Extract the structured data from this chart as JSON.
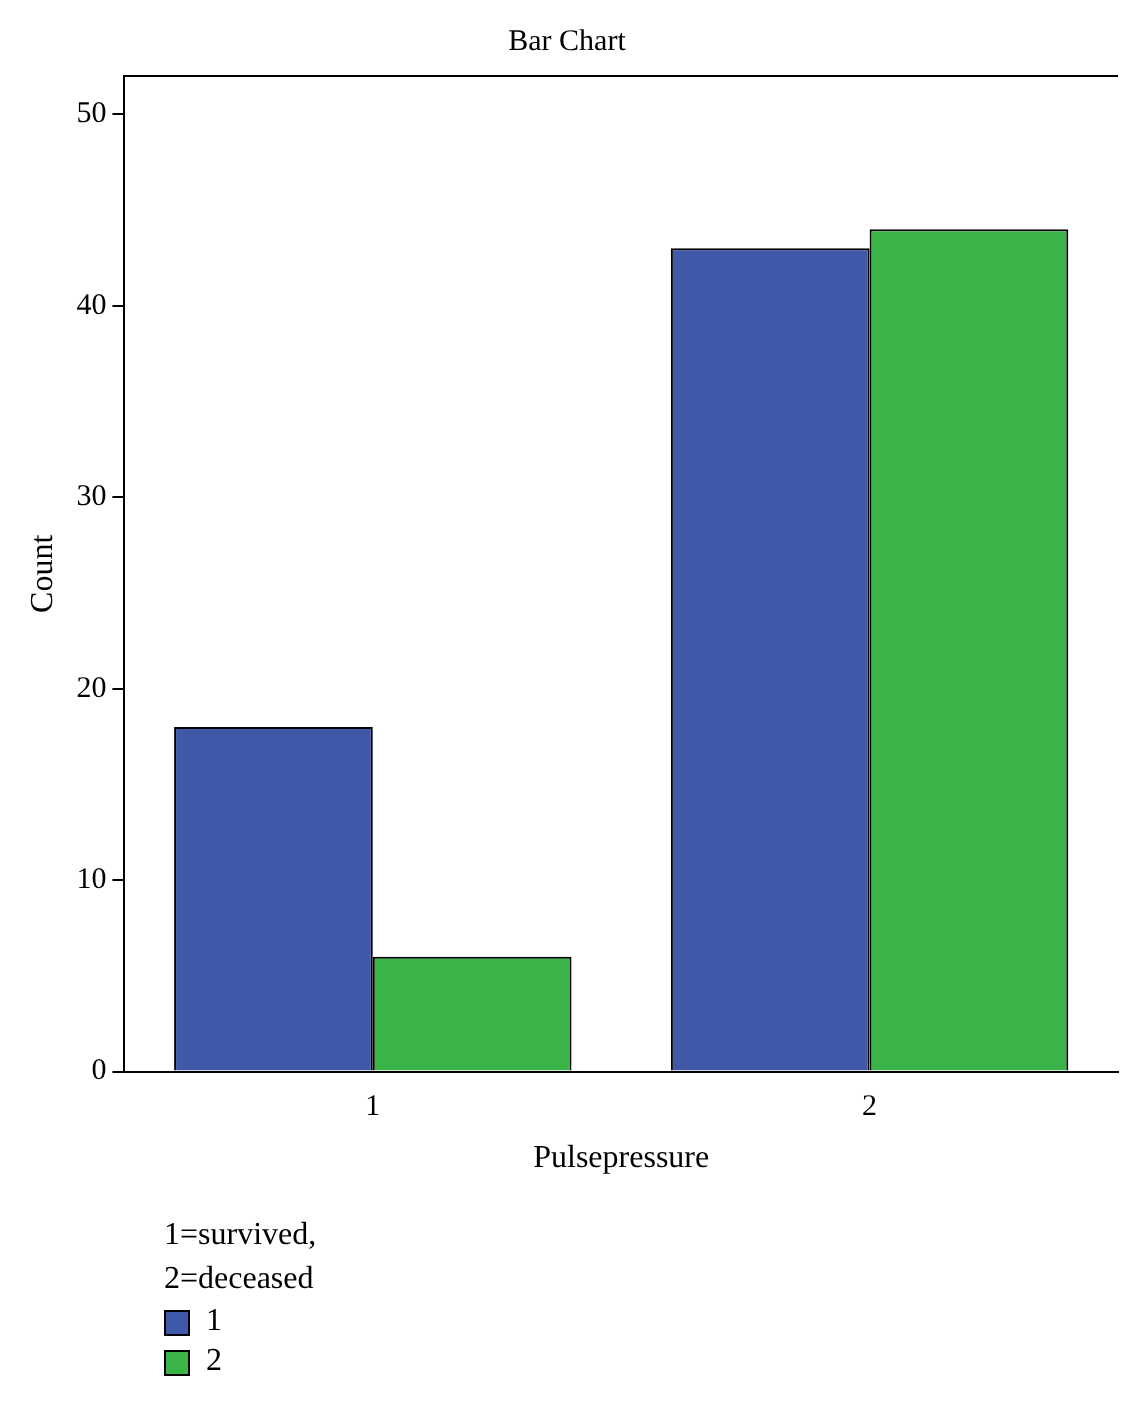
{
  "chart_data": {
    "type": "bar",
    "title": "Bar Chart",
    "xlabel": "Pulsepressure",
    "ylabel": "Count",
    "legend_title": "1=survived, 2=deceased",
    "categories": [
      "1",
      "2"
    ],
    "series": [
      {
        "name": "1",
        "color": "#3f58a7",
        "values": [
          18,
          43
        ]
      },
      {
        "name": "2",
        "color": "#3bb54a",
        "values": [
          6,
          44
        ]
      }
    ],
    "ylim": [
      0,
      52
    ],
    "yticks": [
      0,
      10,
      20,
      30,
      40,
      50
    ],
    "grid": false,
    "legend": "bottom left"
  }
}
